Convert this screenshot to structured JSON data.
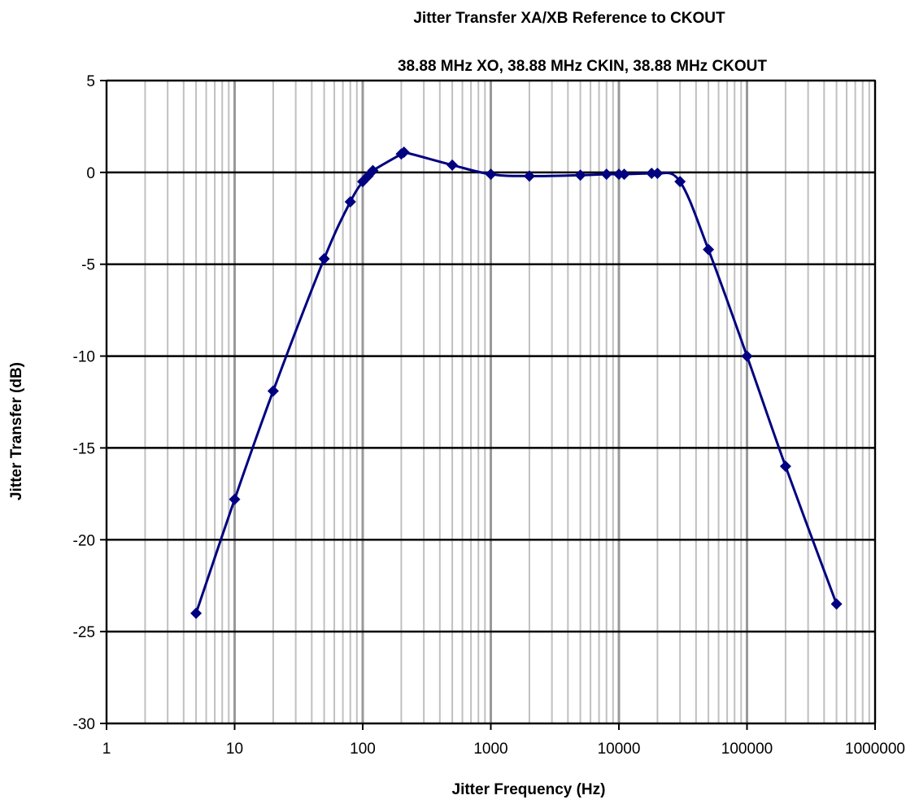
{
  "chart_data": {
    "type": "line",
    "title": "Jitter Transfer  XA/XB Reference  to CKOUT",
    "subtitle": "38.88 MHz XO, 38.88 MHz CKIN,  38.88 MHz CKOUT",
    "xlabel": "Jitter Frequency  (Hz)",
    "ylabel": "Jitter Transfer (dB)",
    "x_scale": "log",
    "xlim": [
      1,
      1000000
    ],
    "ylim": [
      -30,
      5
    ],
    "x_tick_labels": [
      "1",
      "10",
      "100",
      "1000",
      "10000",
      "100000",
      "1000000"
    ],
    "y_tick_labels": [
      "5",
      "0",
      "-5",
      "-10",
      "-15",
      "-20",
      "-25",
      "-30"
    ],
    "grid": true,
    "legend": "none",
    "colors": {
      "series": "#000080",
      "major_grid": "#000000",
      "minor_grid": "#c0c0c0",
      "decade_grid": "#999999"
    },
    "series": [
      {
        "x": [
          5,
          10,
          20,
          50,
          80,
          100,
          110,
          120,
          200,
          210,
          500,
          1000,
          2000,
          5000,
          8000,
          10000,
          11000,
          18000,
          20000,
          30000,
          50000,
          100000,
          200000,
          500000
        ],
        "y": [
          -24.0,
          -17.8,
          -11.9,
          -4.7,
          -1.6,
          -0.5,
          -0.2,
          0.1,
          1.0,
          1.1,
          0.4,
          -0.1,
          -0.2,
          -0.15,
          -0.1,
          -0.1,
          -0.1,
          -0.05,
          -0.05,
          -0.5,
          -4.2,
          -10.0,
          -16.0,
          -23.5
        ]
      }
    ]
  }
}
